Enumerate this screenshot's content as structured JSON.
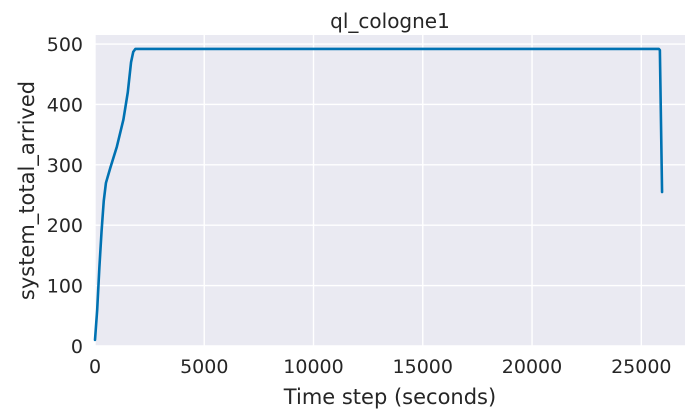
{
  "chart_data": {
    "type": "line",
    "title": "ql_cologne1",
    "xlabel": "Time step (seconds)",
    "ylabel": "system_total_arrived",
    "xlim": [
      0,
      27000
    ],
    "ylim": [
      0,
      515
    ],
    "xticks": [
      0,
      5000,
      10000,
      15000,
      20000,
      25000
    ],
    "yticks": [
      0,
      100,
      200,
      300,
      400,
      500
    ],
    "grid": true,
    "legend": "none",
    "background_color": "#eaeaf2",
    "grid_color": "#ffffff",
    "series": [
      {
        "color": "#0072b2",
        "x": [
          0,
          100,
          200,
          300,
          400,
          500,
          700,
          1000,
          1300,
          1500,
          1650,
          1750,
          1850,
          2000,
          5000,
          10000,
          15000,
          20000,
          25000,
          25800,
          25850,
          25950
        ],
        "y": [
          10,
          60,
          130,
          190,
          240,
          270,
          295,
          330,
          375,
          420,
          470,
          487,
          492,
          492,
          492,
          492,
          492,
          492,
          492,
          492,
          490,
          255
        ]
      }
    ]
  }
}
